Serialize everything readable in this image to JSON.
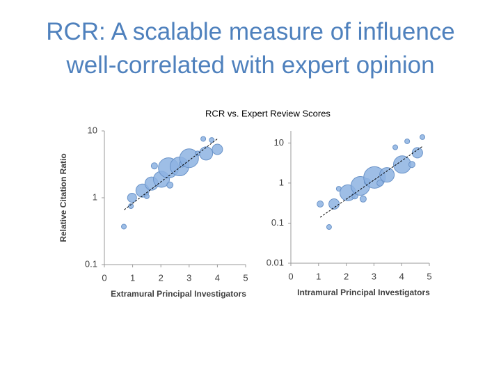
{
  "slide_title": "RCR: A scalable measure of influence well-correlated with expert opinion",
  "figure_title": "RCR vs. Expert Review Scores",
  "chart_data": [
    {
      "type": "scatter",
      "xlabel": "Extramural Principal Investigators",
      "ylabel": "Relative Citation Ratio",
      "log_y": true,
      "color": "#8db3e2",
      "edge_color": "#6a93c8",
      "xlim": [
        0,
        5
      ],
      "xticks": [
        0,
        1,
        2,
        3,
        4,
        5
      ],
      "ylim": [
        0.1,
        10
      ],
      "yticks": [
        0.1,
        1,
        10
      ],
      "x": [
        0.69,
        0.94,
        0.98,
        1.35,
        1.5,
        1.67,
        1.77,
        2.02,
        2.27,
        2.32,
        2.66,
        2.76,
        3.0,
        3.3,
        3.5,
        3.6,
        3.8,
        4.0
      ],
      "y": [
        0.37,
        0.75,
        1.0,
        1.28,
        1.05,
        1.63,
        3.0,
        1.89,
        2.8,
        1.55,
        2.94,
        3.2,
        3.9,
        4.6,
        7.6,
        4.6,
        7.3,
        5.3
      ],
      "sizes": [
        2,
        2,
        5,
        8,
        2,
        8,
        3,
        10,
        13,
        3,
        12,
        3,
        12,
        2,
        2,
        8,
        2,
        6
      ],
      "trendline": {
        "x": [
          0.7,
          4.0
        ],
        "y": [
          0.66,
          7.6
        ]
      }
    },
    {
      "type": "scatter",
      "xlabel": "Intramural Principal Investigators",
      "log_y": true,
      "color": "#8db3e2",
      "edge_color": "#6a93c8",
      "xlim": [
        0,
        5
      ],
      "xticks": [
        0,
        1,
        2,
        3,
        4,
        5
      ],
      "ylim": [
        0.01,
        20
      ],
      "yticks": [
        0.01,
        0.1,
        1,
        10
      ],
      "x": [
        1.06,
        1.38,
        1.56,
        1.73,
        2.06,
        2.31,
        2.51,
        2.61,
        2.76,
        3.02,
        3.22,
        3.47,
        3.77,
        4.02,
        4.2,
        4.37,
        4.57,
        4.75
      ],
      "y": [
        0.3,
        0.08,
        0.3,
        0.72,
        0.57,
        0.48,
        0.85,
        0.4,
        1.08,
        1.38,
        1.0,
        1.6,
        7.8,
        2.9,
        11,
        2.9,
        5.7,
        14
      ],
      "sizes": [
        3,
        2,
        6,
        2,
        10,
        3,
        12,
        3,
        3,
        14,
        3,
        9,
        2,
        11,
        2,
        3,
        6,
        2
      ],
      "trendline": {
        "x": [
          1.06,
          4.75
        ],
        "y": [
          0.14,
          8.2
        ]
      }
    }
  ]
}
